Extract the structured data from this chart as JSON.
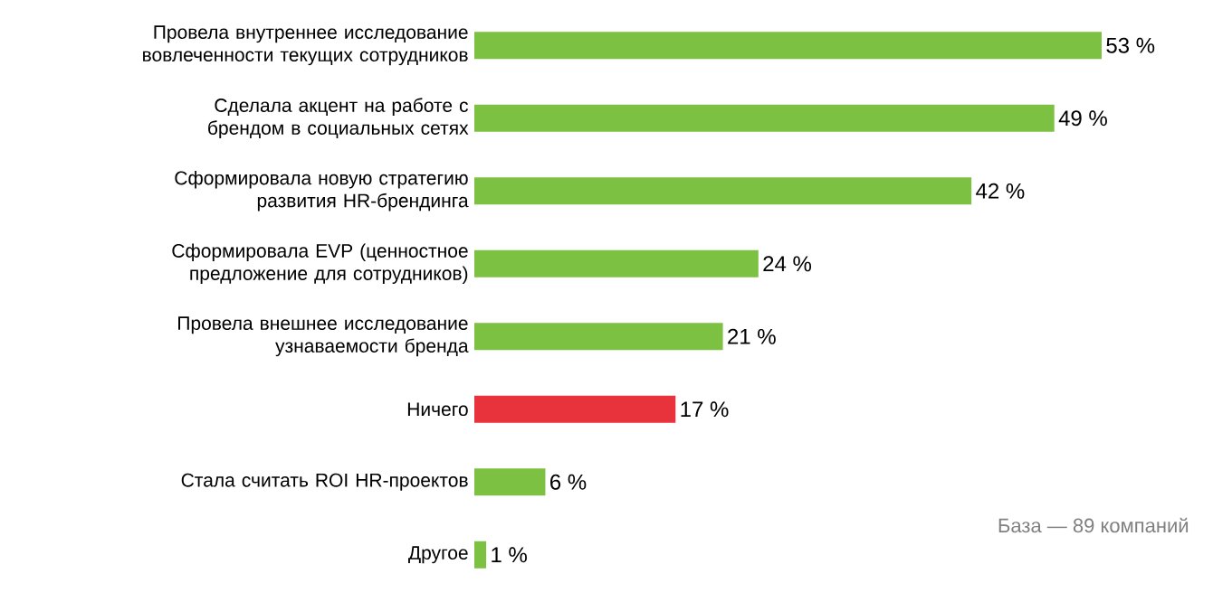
{
  "chart_data": {
    "type": "bar",
    "orientation": "horizontal",
    "categories": [
      "Провела внутреннее исследование вовлеченности текущих сотрудников",
      "Сделала акцент на работе с брендом в социальных сетях",
      "Сформировала новую стратегию развития HR-брендинга",
      "Сформировала EVP (ценностное предложение для сотрудников)",
      "Провела внешнее исследование узнаваемости бренда",
      "Ничего",
      "Стала считать ROI HR-проектов",
      "Другое"
    ],
    "values": [
      53,
      49,
      42,
      24,
      21,
      17,
      6,
      1
    ],
    "value_labels": [
      "53 %",
      "49 %",
      "42 %",
      "24 %",
      "21 %",
      "17 %",
      "6 %",
      "1 %"
    ],
    "colors": [
      "#7dc142",
      "#7dc142",
      "#7dc142",
      "#7dc142",
      "#7dc142",
      "#e8323c",
      "#7dc142",
      "#7dc142"
    ],
    "annotations": [
      "База — 89 компаний"
    ]
  }
}
